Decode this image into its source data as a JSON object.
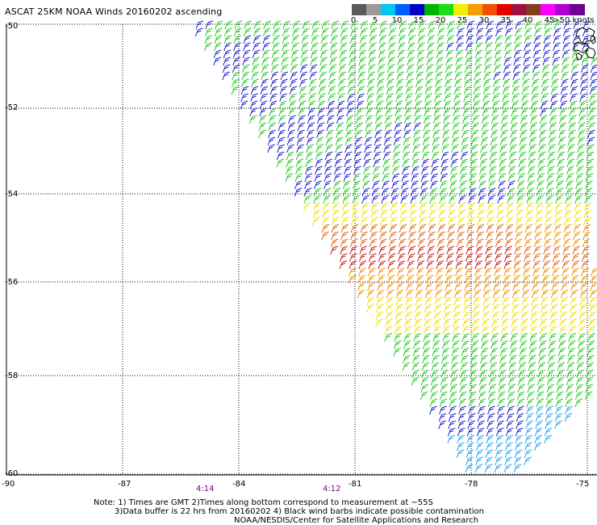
{
  "title": "ASCAT 25KM NOAA Winds 20160202 ascending",
  "colorbar": {
    "colors": [
      "#5a5a5a",
      "#9a9a9a",
      "#00c8f0",
      "#0060ff",
      "#0000c8",
      "#00b400",
      "#18e018",
      "#f0f000",
      "#f0a000",
      "#f05000",
      "#e00000",
      "#a01040",
      "#804020",
      "#ff00ff",
      "#b000d0",
      "#700090"
    ],
    "labels": [
      "0",
      "5",
      "10",
      "15",
      "20",
      "25",
      "30",
      "35",
      "40",
      "45",
      ">50 knots"
    ]
  },
  "map": {
    "lat_labels": [
      "-50",
      "-52",
      "-54",
      "-56",
      "-58",
      "-60"
    ],
    "lon_labels": [
      "-90",
      "-87",
      "-84",
      "-81",
      "-78",
      "-75"
    ],
    "times": [
      "4:14",
      "4:12"
    ],
    "barb_colors": {
      "green": "#1ec81e",
      "blue": "#1a1ad0",
      "lightblue": "#20a0f0",
      "yellow": "#f0e000",
      "orange": "#f09000",
      "darkorange": "#e06010",
      "red": "#c81414"
    }
  },
  "notes": [
    "Note: 1) Times are GMT 2)Times along bottom correspond to measurement at ~55S",
    "3)Data buffer is 22 hrs from 20160202 4) Black wind barbs indicate possible contamination",
    "NOAA/NESDIS/Center for Satellite Applications and Research"
  ]
}
